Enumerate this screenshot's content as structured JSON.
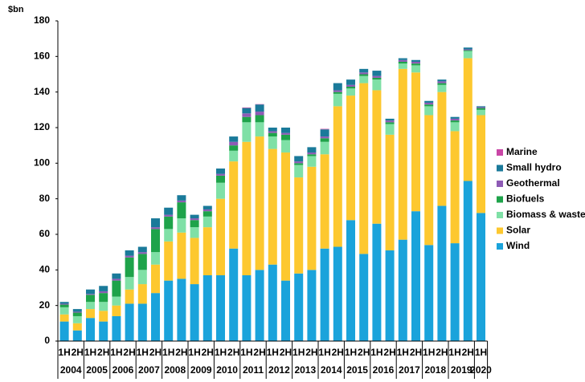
{
  "chart_data": {
    "type": "stacked_bar",
    "y_label": "$bn",
    "categories": [
      "1H",
      "2H",
      "1H",
      "2H",
      "1H",
      "2H",
      "1H",
      "2H",
      "1H",
      "2H",
      "1H",
      "2H",
      "1H",
      "2H",
      "1H",
      "2H",
      "1H",
      "2H",
      "1H",
      "2H",
      "1H",
      "2H",
      "1H",
      "2H",
      "1H",
      "2H",
      "1H",
      "2H",
      "1H",
      "2H",
      "1H",
      "2H",
      "1H"
    ],
    "years": [
      "2004",
      "2005",
      "2006",
      "2007",
      "2008",
      "2009",
      "2010",
      "2011",
      "2012",
      "2013",
      "2014",
      "2015",
      "2016",
      "2017",
      "2018",
      "2019",
      "2020"
    ],
    "ylim": [
      0,
      180
    ],
    "yticks": [
      0,
      20,
      40,
      60,
      80,
      100,
      120,
      140,
      160,
      180
    ],
    "series": [
      {
        "name": "Wind",
        "color": "#1aa3db",
        "values": [
          11,
          6,
          13,
          11,
          14,
          21,
          21,
          27,
          34,
          35,
          32,
          37,
          37,
          52,
          37,
          40,
          43,
          34,
          38,
          40,
          52,
          53,
          68,
          49,
          66,
          51,
          57,
          73,
          54,
          76,
          55,
          90,
          72
        ]
      },
      {
        "name": "Solar",
        "color": "#fdc82f",
        "values": [
          4,
          4,
          5,
          6,
          6,
          8,
          11,
          16,
          22,
          26,
          26,
          27,
          43,
          49,
          75,
          75,
          65,
          72,
          54,
          58,
          53,
          79,
          70,
          96,
          75,
          65,
          96,
          78,
          73,
          64,
          63,
          69,
          55
        ]
      },
      {
        "name": "Biomass & waste",
        "color": "#7fe0a6",
        "values": [
          4,
          4,
          4,
          5,
          5,
          7,
          8,
          7,
          7,
          8,
          6,
          6,
          9,
          6,
          11,
          8,
          7,
          7,
          7,
          6,
          7,
          7,
          4,
          4,
          6,
          6,
          3,
          4,
          5,
          4,
          5,
          4,
          3
        ]
      },
      {
        "name": "Biofuels",
        "color": "#1ea34a",
        "values": [
          1.5,
          2,
          4,
          5,
          9,
          11,
          9,
          13,
          7,
          9,
          4,
          3,
          4,
          3,
          3,
          4,
          2,
          3,
          1,
          1,
          2,
          1,
          1,
          1,
          1,
          1,
          1,
          1,
          1,
          1,
          1,
          0.5,
          1
        ]
      },
      {
        "name": "Geothermal",
        "color": "#8e5bb5",
        "values": [
          0.5,
          0.5,
          0.5,
          1,
          1,
          1,
          1,
          1,
          1,
          1,
          1,
          1,
          1,
          2,
          2,
          2,
          1,
          1,
          1,
          1,
          1,
          1,
          1,
          1,
          1,
          1,
          1,
          1,
          1,
          1,
          1,
          0.5,
          0.5
        ]
      },
      {
        "name": "Small hydro",
        "color": "#1a7a9a",
        "values": [
          1,
          1.5,
          2.5,
          3,
          3,
          3,
          3,
          5,
          4,
          3,
          2,
          2,
          3,
          3,
          3,
          4,
          2,
          3,
          3,
          3,
          4,
          4,
          3,
          2,
          3,
          1,
          1,
          1,
          1,
          1,
          1,
          1,
          0.5
        ]
      },
      {
        "name": "Marine",
        "color": "#c946a6",
        "values": [
          0,
          0,
          0,
          0,
          0,
          0,
          0,
          0,
          0,
          0,
          0,
          0,
          0,
          0,
          0.3,
          0.2,
          0,
          0,
          0,
          0,
          0.3,
          0,
          0,
          0,
          0,
          0,
          0,
          0,
          0,
          0,
          0,
          0,
          0
        ]
      }
    ]
  }
}
